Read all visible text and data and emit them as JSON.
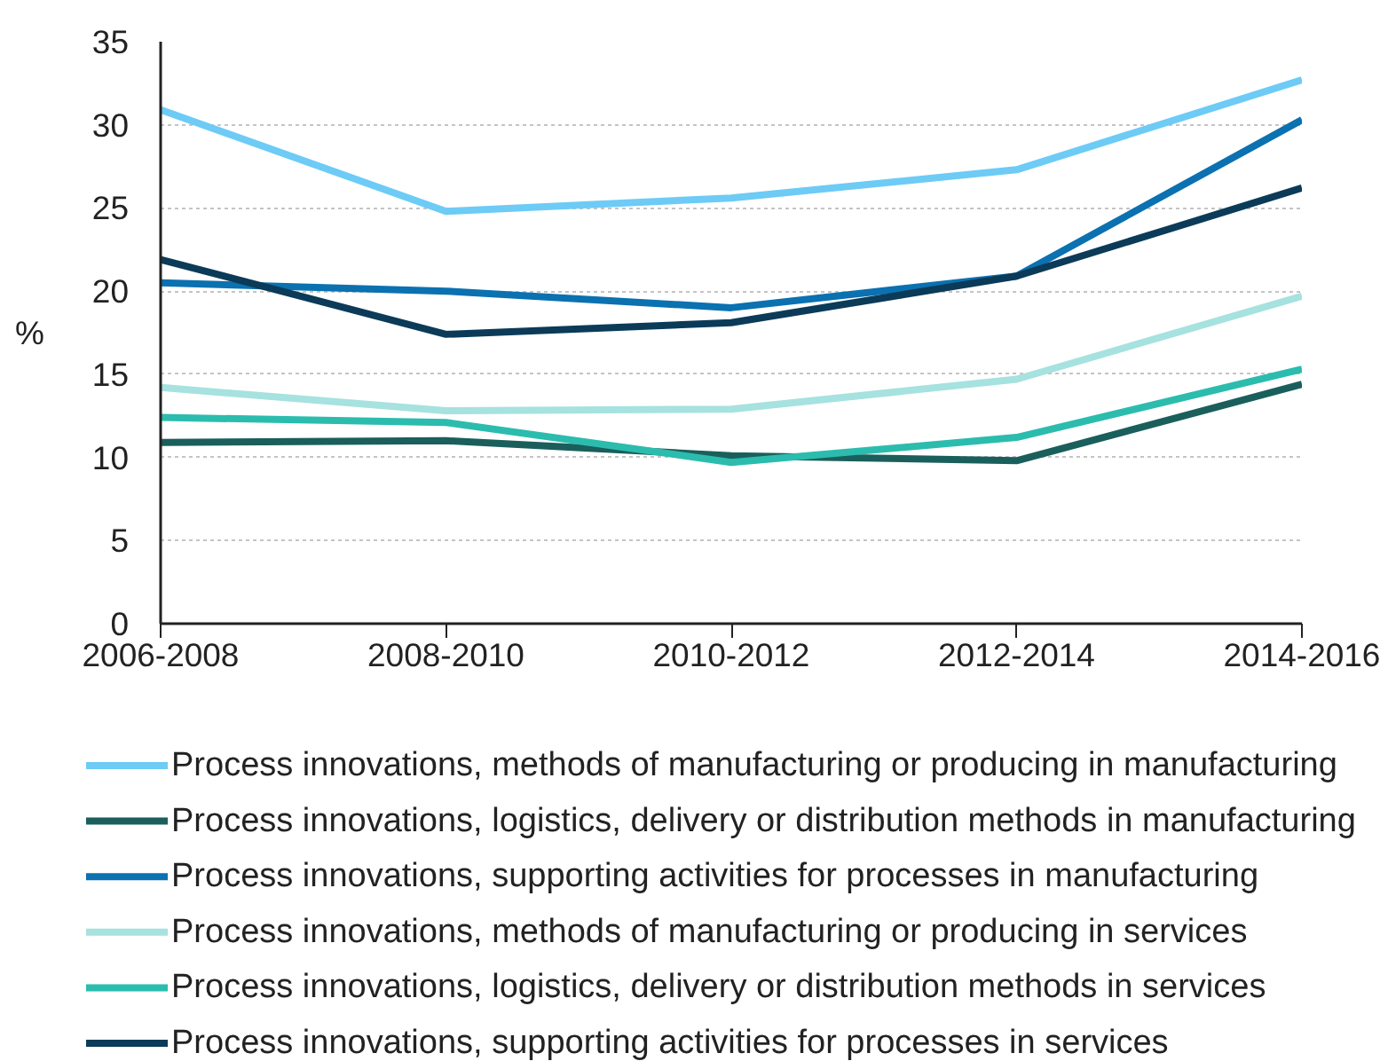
{
  "chart_data": {
    "type": "line",
    "categories": [
      "2006-2008",
      "2008-2010",
      "2010-2012",
      "2012-2014",
      "2014-2016"
    ],
    "ylabel": "%",
    "ylim": [
      0,
      35
    ],
    "yticks": [
      0,
      5,
      10,
      15,
      20,
      25,
      30,
      35
    ],
    "grid": "y",
    "legend": "bottom",
    "series": [
      {
        "name": "Process innovations, methods of manufacturing or producing in manufacturing",
        "color": "#6dcbf6",
        "values": [
          30.9,
          24.8,
          25.6,
          27.3,
          32.7
        ]
      },
      {
        "name": "Process innovations, logistics, delivery or distribution methods in manufacturing",
        "color": "#1a5f5b",
        "values": [
          10.9,
          11.0,
          10.1,
          9.8,
          14.4
        ]
      },
      {
        "name": "Process innovations, supporting activities for processes in manufacturing",
        "color": "#0b71b0",
        "values": [
          20.5,
          20.0,
          19.0,
          20.9,
          30.3
        ]
      },
      {
        "name": "Process innovations, methods of manufacturing or producing in services",
        "color": "#a6e2df",
        "values": [
          14.2,
          12.8,
          12.9,
          14.7,
          19.7
        ]
      },
      {
        "name": "Process innovations, logistics, delivery or distribution methods in services",
        "color": "#2bbcae",
        "values": [
          12.4,
          12.1,
          9.7,
          11.2,
          15.3
        ]
      },
      {
        "name": "Process innovations, supporting activities for processes in services",
        "color": "#0b3b58",
        "values": [
          21.9,
          17.4,
          18.1,
          20.9,
          26.2
        ]
      }
    ]
  }
}
